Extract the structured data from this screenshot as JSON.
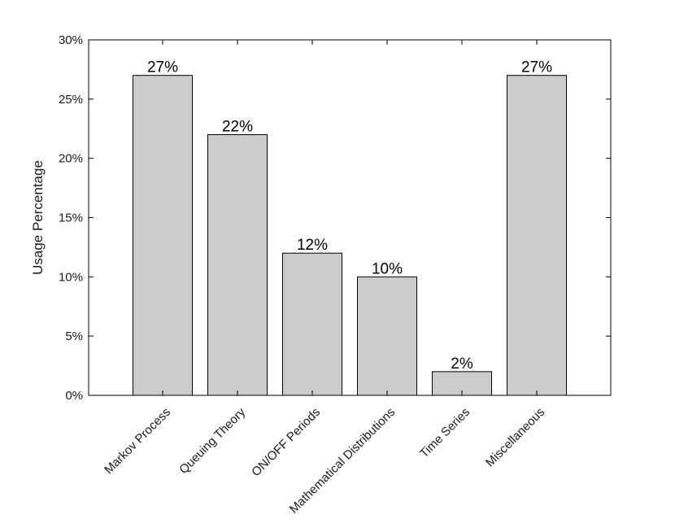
{
  "chart_data": {
    "type": "bar",
    "categories": [
      "Markov Process",
      "Queuing Theory",
      "ON/OFF Periods",
      "Mathematical Distributions",
      "Time Series",
      "Miscellaneous"
    ],
    "values": [
      27,
      22,
      12,
      10,
      2,
      27
    ],
    "value_labels": [
      "27%",
      "22%",
      "12%",
      "10%",
      "2%",
      "27%"
    ],
    "ylabel": "Usage Percentage",
    "xlabel": "",
    "ylim": [
      0,
      30
    ],
    "yticks": [
      0,
      5,
      10,
      15,
      20,
      25,
      30
    ],
    "ytick_labels": [
      "0%",
      "5%",
      "10%",
      "15%",
      "20%",
      "25%",
      "30%"
    ],
    "bar_color": "#cccccc",
    "grid": false,
    "legend": "none"
  }
}
